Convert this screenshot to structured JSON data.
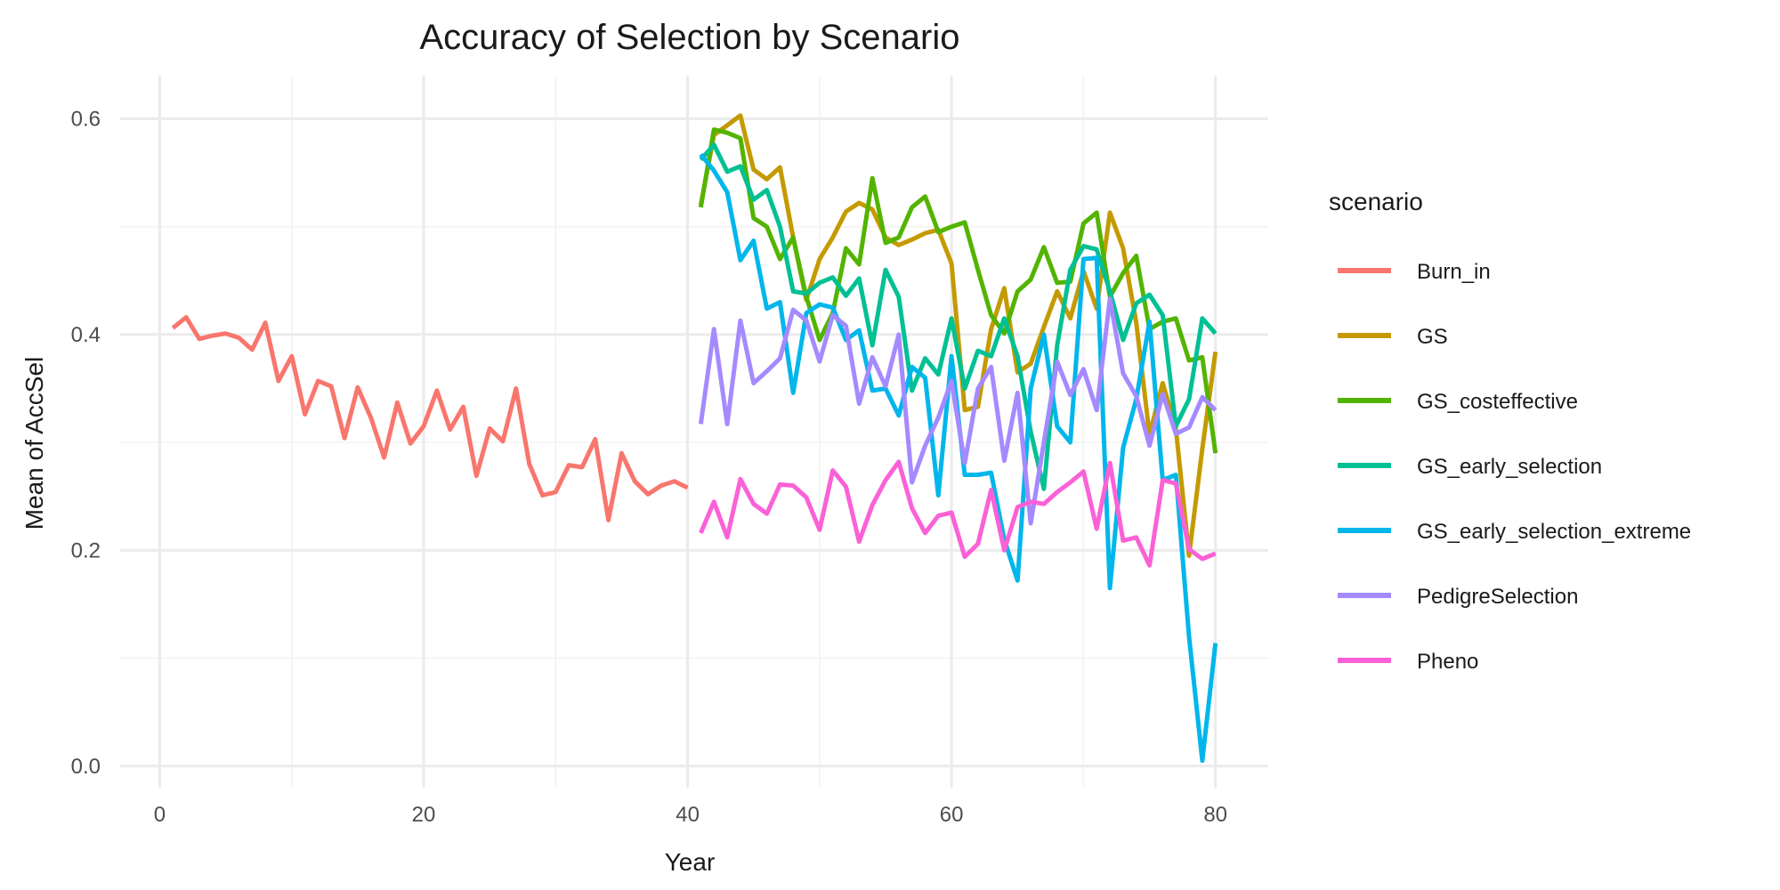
{
  "chart_data": {
    "type": "line",
    "title": "Accuracy of Selection by Scenario",
    "xlabel": "Year",
    "ylabel": "Mean of AccSel",
    "xlim": [
      -3,
      84
    ],
    "ylim": [
      -0.02,
      0.64
    ],
    "xticks": [
      0,
      20,
      40,
      60,
      80
    ],
    "xtick_labels": [
      "0",
      "20",
      "40",
      "60",
      "80"
    ],
    "yticks": [
      0.0,
      0.2,
      0.4,
      0.6
    ],
    "ytick_labels": [
      "0.0",
      "0.2",
      "0.4",
      "0.6"
    ],
    "x_minor_gridlines": [
      10,
      30,
      50,
      70
    ],
    "y_minor_gridlines": [
      0.1,
      0.3,
      0.5
    ],
    "grid": true,
    "legend_position": "right",
    "legend_title": "scenario",
    "series": [
      {
        "name": "Burn_in",
        "color": "#F8766D",
        "x": [
          1,
          2,
          3,
          4,
          5,
          6,
          7,
          8,
          9,
          10,
          11,
          12,
          13,
          14,
          15,
          16,
          17,
          18,
          19,
          20,
          21,
          22,
          23,
          24,
          25,
          26,
          27,
          28,
          29,
          30,
          31,
          32,
          33,
          34,
          35,
          36,
          37,
          38,
          39,
          40
        ],
        "values": [
          0.406,
          0.416,
          0.396,
          0.399,
          0.401,
          0.397,
          0.386,
          0.411,
          0.357,
          0.38,
          0.326,
          0.357,
          0.352,
          0.304,
          0.351,
          0.323,
          0.286,
          0.337,
          0.299,
          0.315,
          0.348,
          0.312,
          0.333,
          0.269,
          0.313,
          0.301,
          0.35,
          0.28,
          0.251,
          0.254,
          0.279,
          0.277,
          0.303,
          0.228,
          0.29,
          0.264,
          0.252,
          0.26,
          0.264,
          0.258
        ]
      },
      {
        "name": "GS",
        "color": "#C49A00",
        "x": [
          41,
          42,
          43,
          44,
          45,
          46,
          47,
          48,
          49,
          50,
          51,
          52,
          53,
          54,
          55,
          56,
          57,
          58,
          59,
          60,
          61,
          62,
          63,
          64,
          65,
          66,
          67,
          68,
          69,
          70,
          71,
          72,
          73,
          74,
          75,
          76,
          77,
          78,
          79,
          80
        ],
        "values": [
          0.52,
          0.585,
          0.594,
          0.603,
          0.553,
          0.544,
          0.555,
          0.49,
          0.432,
          0.47,
          0.49,
          0.514,
          0.522,
          0.516,
          0.49,
          0.483,
          0.488,
          0.494,
          0.497,
          0.466,
          0.33,
          0.333,
          0.405,
          0.443,
          0.365,
          0.373,
          0.407,
          0.44,
          0.415,
          0.459,
          0.424,
          0.513,
          0.48,
          0.411,
          0.307,
          0.355,
          0.313,
          0.195,
          0.294,
          0.384
        ]
      },
      {
        "name": "GS_costeffective",
        "color": "#53B400",
        "x": [
          41,
          42,
          43,
          44,
          45,
          46,
          47,
          48,
          49,
          50,
          51,
          52,
          53,
          54,
          55,
          56,
          57,
          58,
          59,
          60,
          61,
          62,
          63,
          64,
          65,
          66,
          67,
          68,
          69,
          70,
          71,
          72,
          73,
          74,
          75,
          76,
          77,
          78,
          79,
          80
        ],
        "values": [
          0.518,
          0.59,
          0.587,
          0.582,
          0.508,
          0.5,
          0.47,
          0.49,
          0.435,
          0.395,
          0.42,
          0.48,
          0.465,
          0.545,
          0.485,
          0.49,
          0.518,
          0.528,
          0.495,
          0.5,
          0.504,
          0.46,
          0.418,
          0.401,
          0.44,
          0.451,
          0.481,
          0.448,
          0.449,
          0.503,
          0.513,
          0.435,
          0.457,
          0.473,
          0.405,
          0.412,
          0.415,
          0.376,
          0.379,
          0.29
        ]
      },
      {
        "name": "GS_early_selection",
        "color": "#00C094",
        "x": [
          41,
          42,
          43,
          44,
          45,
          46,
          47,
          48,
          49,
          50,
          51,
          52,
          53,
          54,
          55,
          56,
          57,
          58,
          59,
          60,
          61,
          62,
          63,
          64,
          65,
          66,
          67,
          68,
          69,
          70,
          71,
          72,
          73,
          74,
          75,
          76,
          77,
          78,
          79,
          80
        ],
        "values": [
          0.562,
          0.576,
          0.551,
          0.556,
          0.525,
          0.534,
          0.5,
          0.44,
          0.438,
          0.448,
          0.453,
          0.436,
          0.452,
          0.39,
          0.46,
          0.435,
          0.348,
          0.378,
          0.363,
          0.415,
          0.35,
          0.385,
          0.38,
          0.415,
          0.38,
          0.31,
          0.257,
          0.39,
          0.46,
          0.482,
          0.479,
          0.44,
          0.395,
          0.429,
          0.437,
          0.418,
          0.315,
          0.34,
          0.415,
          0.401
        ]
      },
      {
        "name": "GS_early_selection_extreme",
        "color": "#00B6EB",
        "x": [
          41,
          42,
          43,
          44,
          45,
          46,
          47,
          48,
          49,
          50,
          51,
          52,
          53,
          54,
          55,
          56,
          57,
          58,
          59,
          60,
          61,
          62,
          63,
          64,
          65,
          66,
          67,
          68,
          69,
          70,
          71,
          72,
          73,
          74,
          75,
          76,
          77,
          78,
          79,
          80
        ],
        "values": [
          0.567,
          0.552,
          0.532,
          0.469,
          0.487,
          0.424,
          0.43,
          0.346,
          0.42,
          0.428,
          0.425,
          0.395,
          0.404,
          0.348,
          0.35,
          0.325,
          0.37,
          0.36,
          0.251,
          0.38,
          0.27,
          0.27,
          0.272,
          0.21,
          0.172,
          0.35,
          0.4,
          0.315,
          0.3,
          0.47,
          0.471,
          0.165,
          0.295,
          0.34,
          0.412,
          0.265,
          0.27,
          0.12,
          0.005,
          0.114
        ]
      },
      {
        "name": "PedigreSelection",
        "color": "#A58AFF",
        "x": [
          41,
          42,
          43,
          44,
          45,
          46,
          47,
          48,
          49,
          50,
          51,
          52,
          53,
          54,
          55,
          56,
          57,
          58,
          59,
          60,
          61,
          62,
          63,
          64,
          65,
          66,
          67,
          68,
          69,
          70,
          71,
          72,
          73,
          74,
          75,
          76,
          77,
          78,
          79,
          80
        ],
        "values": [
          0.317,
          0.405,
          0.317,
          0.413,
          0.355,
          0.366,
          0.378,
          0.423,
          0.413,
          0.375,
          0.418,
          0.408,
          0.336,
          0.379,
          0.352,
          0.4,
          0.263,
          0.297,
          0.323,
          0.357,
          0.281,
          0.35,
          0.37,
          0.283,
          0.346,
          0.225,
          0.3,
          0.375,
          0.344,
          0.368,
          0.33,
          0.433,
          0.364,
          0.343,
          0.297,
          0.345,
          0.308,
          0.314,
          0.342,
          0.33
        ]
      },
      {
        "name": "Pheno",
        "color": "#FB61D7",
        "x": [
          41,
          42,
          43,
          44,
          45,
          46,
          47,
          48,
          49,
          50,
          51,
          52,
          53,
          54,
          55,
          56,
          57,
          58,
          59,
          60,
          61,
          62,
          63,
          64,
          65,
          66,
          67,
          68,
          69,
          70,
          71,
          72,
          73,
          74,
          75,
          76,
          77,
          78,
          79,
          80
        ],
        "values": [
          0.216,
          0.245,
          0.212,
          0.266,
          0.243,
          0.234,
          0.261,
          0.26,
          0.249,
          0.219,
          0.274,
          0.259,
          0.208,
          0.242,
          0.265,
          0.282,
          0.239,
          0.216,
          0.232,
          0.235,
          0.194,
          0.206,
          0.256,
          0.2,
          0.24,
          0.245,
          0.243,
          0.254,
          0.263,
          0.273,
          0.22,
          0.281,
          0.209,
          0.212,
          0.186,
          0.265,
          0.262,
          0.201,
          0.192,
          0.197
        ]
      }
    ]
  }
}
